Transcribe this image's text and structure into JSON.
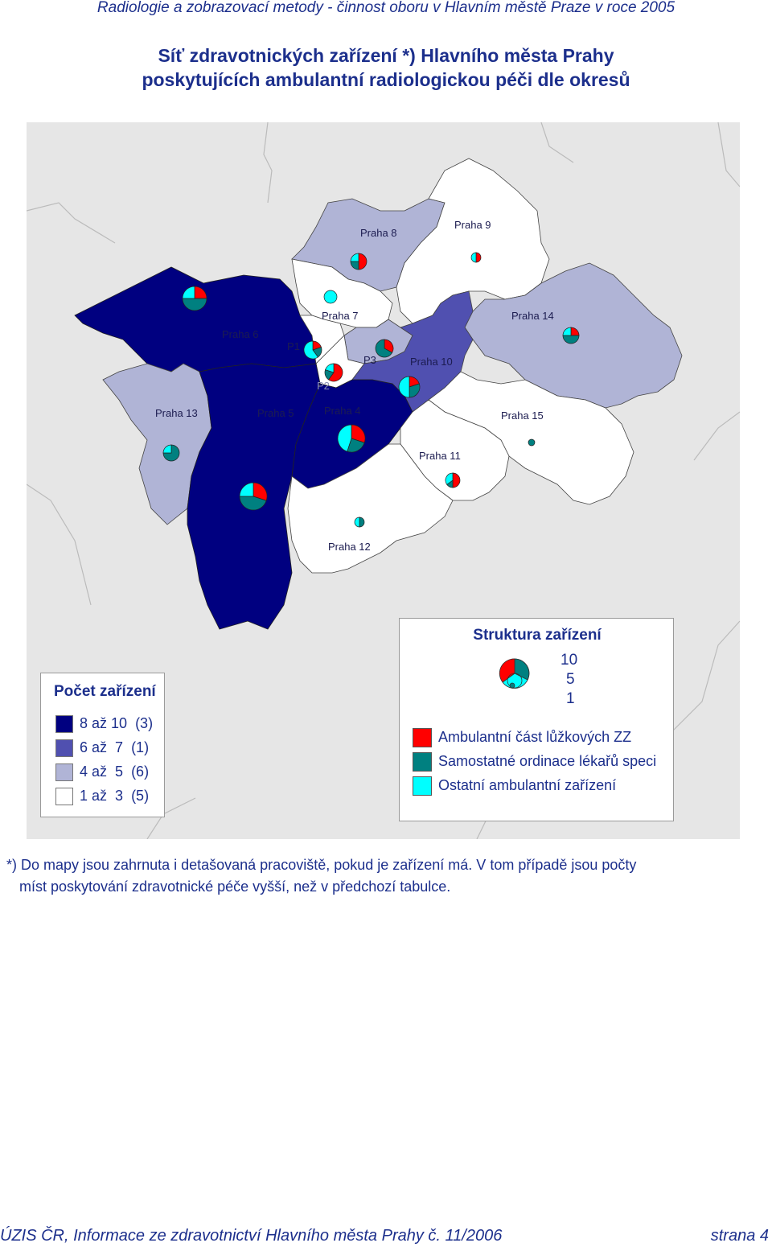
{
  "header": "Radiologie a zobrazovací metody - činnost oboru v Hlavním městě Praze v roce 2005",
  "title": {
    "line1": "Síť zdravotnických zařízení *) Hlavního města Prahy",
    "line2": "poskytujících ambulantní radiologickou péči dle okresů"
  },
  "map": {
    "district_labels": {
      "praha8": "Praha 8",
      "praha9": "Praha 9",
      "praha6": "Praha 6",
      "praha7": "Praha 7",
      "praha14": "Praha 14",
      "p1": "P1",
      "p3": "P3",
      "praha10": "Praha 10",
      "p2": "P2",
      "praha13": "Praha 13",
      "praha5": "Praha 5",
      "praha4": "Praha 4",
      "praha15": "Praha 15",
      "praha11": "Praha 11",
      "praha12": "Praha 12"
    },
    "colors": {
      "dark": "#000080",
      "medium": "#5050b0",
      "light": "#b0b4d6",
      "white": "#ffffff",
      "background": "#e6e6e6",
      "red": "#ff0000",
      "teal": "#008080",
      "cyan": "#00ffff"
    }
  },
  "legend_count": {
    "title": "Počet zařízení",
    "items": [
      {
        "label": "8 až 10",
        "count": "(3)",
        "color": "#000080"
      },
      {
        "label": "6 až  7",
        "count": "(1)",
        "color": "#5050b0"
      },
      {
        "label": "4 až  5",
        "count": "(6)",
        "color": "#b0b4d6"
      },
      {
        "label": "1 až  3",
        "count": "(5)",
        "color": "#ffffff"
      }
    ]
  },
  "legend_structure": {
    "title": "Struktura zařízení",
    "scale": [
      "10",
      "5",
      "1"
    ],
    "items": [
      {
        "label": "Ambulantní část lůžkových ZZ",
        "color": "#ff0000"
      },
      {
        "label": "Samostatné ordinace lékařů speci",
        "color": "#008080"
      },
      {
        "label": "Ostatní ambulantní zařízení",
        "color": "#00ffff"
      }
    ]
  },
  "note": {
    "line1": "*) Do mapy jsou zahrnuta i detašovaná pracoviště, pokud je zařízení má. V tom případě jsou počty",
    "line2": "míst poskytování zdravotnické péče vyšší, než v předchozí tabulce."
  },
  "footer": {
    "left": "ÚZIS ČR, Informace ze zdravotnictví Hlavního města Prahy č. 11/2006",
    "right": "strana 4"
  }
}
